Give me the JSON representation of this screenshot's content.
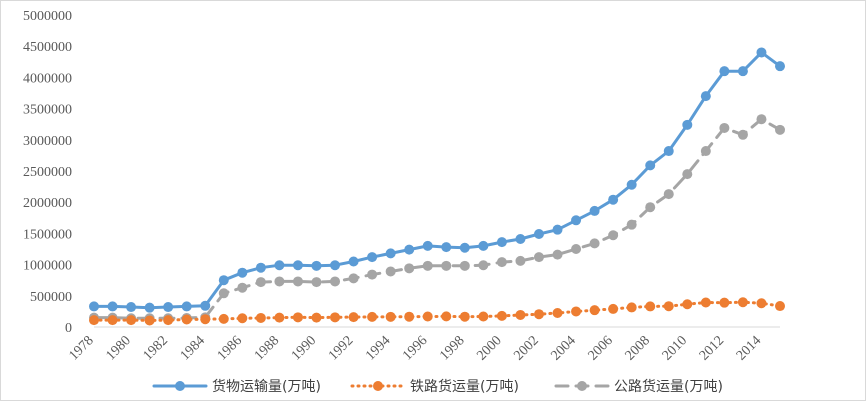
{
  "chart_data": {
    "type": "line",
    "title": "",
    "xlabel": "",
    "ylabel": "",
    "ylim": [
      0,
      5000000
    ],
    "yticks": [
      "0",
      "500000",
      "1000000",
      "1500000",
      "2000000",
      "2500000",
      "3000000",
      "3500000",
      "4000000",
      "4500000",
      "5000000"
    ],
    "xtick_labels": [
      "1978",
      "1980",
      "1982",
      "1984",
      "1986",
      "1988",
      "1990",
      "1992",
      "1994",
      "1996",
      "1998",
      "2000",
      "2002",
      "2004",
      "2006",
      "2008",
      "2010",
      "2012",
      "2014"
    ],
    "x": [
      1978,
      1979,
      1980,
      1981,
      1982,
      1983,
      1984,
      1985,
      1986,
      1987,
      1988,
      1989,
      1990,
      1991,
      1992,
      1993,
      1994,
      1995,
      1996,
      1997,
      1998,
      1999,
      2000,
      2001,
      2002,
      2003,
      2004,
      2005,
      2006,
      2007,
      2008,
      2009,
      2010,
      2011,
      2012,
      2013,
      2014,
      2015
    ],
    "grid": false,
    "legend_position": "bottom",
    "series": [
      {
        "name": "货物运输量(万吨)",
        "color": "#5b9bd5",
        "style": "solid",
        "values": [
          330000,
          330000,
          320000,
          310000,
          320000,
          330000,
          340000,
          750000,
          870000,
          950000,
          990000,
          990000,
          980000,
          990000,
          1050000,
          1120000,
          1180000,
          1240000,
          1300000,
          1280000,
          1270000,
          1300000,
          1360000,
          1410000,
          1490000,
          1560000,
          1710000,
          1860000,
          2040000,
          2280000,
          2590000,
          2820000,
          3240000,
          3700000,
          4100000,
          4100000,
          4400000,
          4180000
        ]
      },
      {
        "name": "铁路货运量(万吨)",
        "color": "#ed7d31",
        "style": "dotted",
        "values": [
          110000,
          110000,
          110000,
          105000,
          110000,
          120000,
          125000,
          130000,
          140000,
          145000,
          150000,
          155000,
          150000,
          155000,
          158000,
          162000,
          163000,
          165000,
          168000,
          170000,
          165000,
          168000,
          178000,
          193000,
          205000,
          224000,
          249000,
          270000,
          290000,
          314000,
          330000,
          333000,
          365000,
          393000,
          390000,
          397000,
          381000,
          336000
        ]
      },
      {
        "name": "公路货运量(万吨)",
        "color": "#a5a5a5",
        "style": "dashed",
        "values": [
          150000,
          150000,
          140000,
          140000,
          140000,
          145000,
          155000,
          540000,
          630000,
          720000,
          730000,
          730000,
          720000,
          730000,
          780000,
          840000,
          890000,
          940000,
          980000,
          980000,
          980000,
          990000,
          1040000,
          1060000,
          1120000,
          1160000,
          1250000,
          1340000,
          1470000,
          1640000,
          1920000,
          2130000,
          2450000,
          2820000,
          3190000,
          3080000,
          3330000,
          3160000
        ]
      }
    ]
  }
}
